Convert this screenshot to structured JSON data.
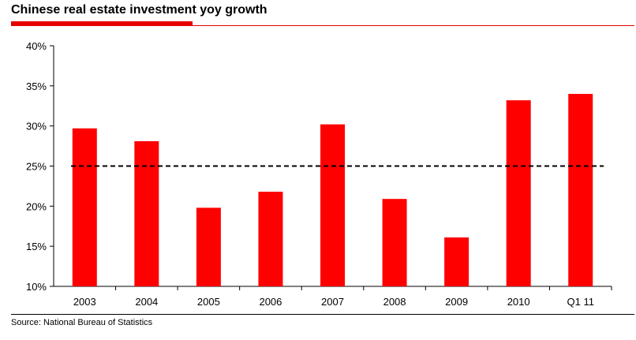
{
  "header": {
    "title": "Chinese real estate investment yoy growth"
  },
  "footer": {
    "source": "Source: National Bureau of Statistics"
  },
  "colors": {
    "bar": "#ff0000",
    "accent": "#e60000",
    "reference_line": "#000000"
  },
  "chart_data": {
    "type": "bar",
    "title": "Chinese real estate investment yoy growth",
    "xlabel": "",
    "ylabel": "",
    "categories": [
      "2003",
      "2004",
      "2005",
      "2006",
      "2007",
      "2008",
      "2009",
      "2010",
      "Q1 11"
    ],
    "values": [
      29.7,
      28.1,
      19.8,
      21.8,
      30.2,
      20.9,
      16.1,
      33.2,
      34.0
    ],
    "ylim": [
      10,
      40
    ],
    "yticks": [
      10,
      15,
      20,
      25,
      30,
      35,
      40
    ],
    "ytick_labels": [
      "10%",
      "15%",
      "20%",
      "25%",
      "30%",
      "35%",
      "40%"
    ],
    "reference_line": {
      "value": 25,
      "style": "dashed"
    },
    "grid": false,
    "legend": "none"
  }
}
